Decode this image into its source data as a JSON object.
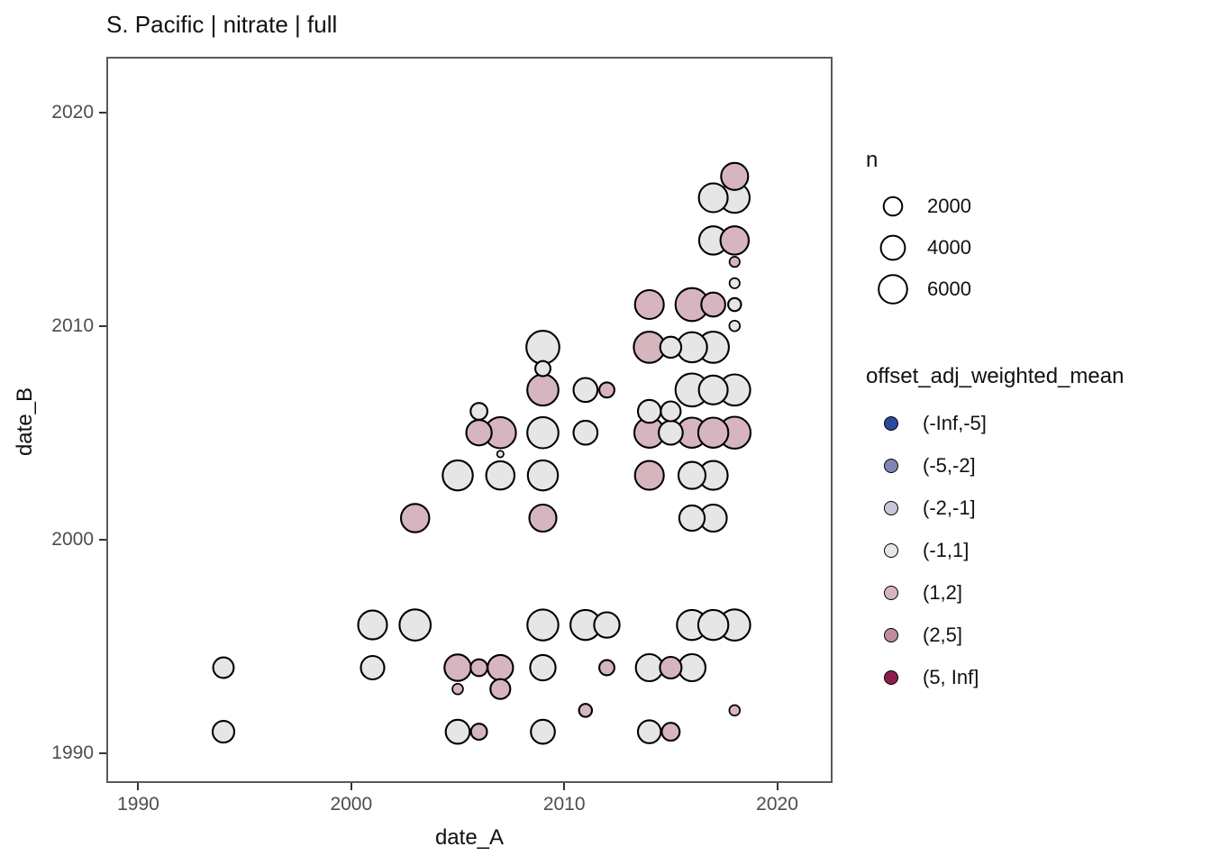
{
  "title": "S. Pacific | nitrate | full",
  "chart_data": {
    "type": "scatter",
    "subtype": "bubble",
    "title": "S. Pacific | nitrate | full",
    "xlabel": "date_A",
    "ylabel": "date_B",
    "x_ticks": [
      1990,
      2000,
      2010,
      2020
    ],
    "y_ticks": [
      1990,
      2000,
      2010,
      2020
    ],
    "xlim": [
      1988.5,
      2022.6
    ],
    "ylim": [
      1988.6,
      2022.6
    ],
    "grid": false,
    "panel_border_color": "#595959",
    "point_stroke_color": "#000000",
    "size_legend": {
      "title": "n",
      "values": [
        2000,
        4000,
        6000
      ]
    },
    "color_legend": {
      "title": "offset_adj_weighted_mean",
      "position": "right",
      "categories": [
        {
          "label": "(-Inf,-5]",
          "color": "#2a4b9b"
        },
        {
          "label": "(-5,-2]",
          "color": "#8184b9"
        },
        {
          "label": "(-2,-1]",
          "color": "#c6c6dc"
        },
        {
          "label": "(-1,1]",
          "color": "#e6e6e6"
        },
        {
          "label": "(1,2]",
          "color": "#d6b5bf"
        },
        {
          "label": "(2,5]",
          "color": "#bf8c9c"
        },
        {
          "label": "(5, Inf]",
          "color": "#8e1d4f"
        }
      ]
    },
    "points": [
      {
        "date_A": 1994,
        "date_B": 1994,
        "n": 2600,
        "bin": "(-1,1]"
      },
      {
        "date_A": 1994,
        "date_B": 1991,
        "n": 3000,
        "bin": "(-1,1]"
      },
      {
        "date_A": 2001,
        "date_B": 1996,
        "n": 6200,
        "bin": "(-1,1]"
      },
      {
        "date_A": 2001,
        "date_B": 1994,
        "n": 3700,
        "bin": "(-1,1]"
      },
      {
        "date_A": 2003,
        "date_B": 1996,
        "n": 7500,
        "bin": "(-1,1]"
      },
      {
        "date_A": 2003,
        "date_B": 2001,
        "n": 5900,
        "bin": "(1,2]"
      },
      {
        "date_A": 2005,
        "date_B": 2003,
        "n": 6900,
        "bin": "(-1,1]"
      },
      {
        "date_A": 2005,
        "date_B": 1994,
        "n": 5000,
        "bin": "(1,2]"
      },
      {
        "date_A": 2005,
        "date_B": 1993,
        "n": 350,
        "bin": "(1,2]"
      },
      {
        "date_A": 2005,
        "date_B": 1991,
        "n": 3900,
        "bin": "(-1,1]"
      },
      {
        "date_A": 2006,
        "date_B": 2006,
        "n": 1500,
        "bin": "(-1,1]"
      },
      {
        "date_A": 2006,
        "date_B": 2005,
        "n": 4500,
        "bin": "(1,2]"
      },
      {
        "date_A": 2006,
        "date_B": 1994,
        "n": 1500,
        "bin": "(1,2]"
      },
      {
        "date_A": 2006,
        "date_B": 1991,
        "n": 1300,
        "bin": "(1,2]"
      },
      {
        "date_A": 2007,
        "date_B": 2005,
        "n": 7500,
        "bin": "(1,2]"
      },
      {
        "date_A": 2007,
        "date_B": 2004,
        "n": 30,
        "bin": "(-1,1]"
      },
      {
        "date_A": 2007,
        "date_B": 2003,
        "n": 5900,
        "bin": "(-1,1]"
      },
      {
        "date_A": 2007,
        "date_B": 1994,
        "n": 4500,
        "bin": "(1,2]"
      },
      {
        "date_A": 2007,
        "date_B": 1993,
        "n": 2400,
        "bin": "(1,2]"
      },
      {
        "date_A": 2009,
        "date_B": 2009,
        "n": 8500,
        "bin": "(-1,1]"
      },
      {
        "date_A": 2009,
        "date_B": 2008,
        "n": 1100,
        "bin": "(-1,1]"
      },
      {
        "date_A": 2009,
        "date_B": 2007,
        "n": 7500,
        "bin": "(1,2]"
      },
      {
        "date_A": 2009,
        "date_B": 2005,
        "n": 7500,
        "bin": "(-1,1]"
      },
      {
        "date_A": 2009,
        "date_B": 2003,
        "n": 6900,
        "bin": "(-1,1]"
      },
      {
        "date_A": 2009,
        "date_B": 2001,
        "n": 5300,
        "bin": "(1,2]"
      },
      {
        "date_A": 2009,
        "date_B": 1996,
        "n": 7400,
        "bin": "(-1,1]"
      },
      {
        "date_A": 2009,
        "date_B": 1994,
        "n": 4500,
        "bin": "(-1,1]"
      },
      {
        "date_A": 2009,
        "date_B": 1991,
        "n": 3900,
        "bin": "(-1,1]"
      },
      {
        "date_A": 2011,
        "date_B": 2007,
        "n": 3900,
        "bin": "(-1,1]"
      },
      {
        "date_A": 2011,
        "date_B": 2005,
        "n": 3900,
        "bin": "(-1,1]"
      },
      {
        "date_A": 2011,
        "date_B": 1996,
        "n": 6900,
        "bin": "(-1,1]"
      },
      {
        "date_A": 2011,
        "date_B": 1992,
        "n": 700,
        "bin": "(1,2]"
      },
      {
        "date_A": 2012,
        "date_B": 2007,
        "n": 1100,
        "bin": "(1,2]"
      },
      {
        "date_A": 2012,
        "date_B": 1996,
        "n": 4500,
        "bin": "(-1,1]"
      },
      {
        "date_A": 2012,
        "date_B": 1994,
        "n": 1100,
        "bin": "(1,2]"
      },
      {
        "date_A": 2014,
        "date_B": 2011,
        "n": 6200,
        "bin": "(1,2]"
      },
      {
        "date_A": 2014,
        "date_B": 2009,
        "n": 7500,
        "bin": "(1,2]"
      },
      {
        "date_A": 2014,
        "date_B": 2006,
        "n": 3500,
        "bin": "(-1,1]"
      },
      {
        "date_A": 2014,
        "date_B": 2005,
        "n": 6900,
        "bin": "(1,2]"
      },
      {
        "date_A": 2014,
        "date_B": 2003,
        "n": 6200,
        "bin": "(1,2]"
      },
      {
        "date_A": 2014,
        "date_B": 1994,
        "n": 5300,
        "bin": "(-1,1]"
      },
      {
        "date_A": 2014,
        "date_B": 1991,
        "n": 3500,
        "bin": "(-1,1]"
      },
      {
        "date_A": 2015,
        "date_B": 2009,
        "n": 2800,
        "bin": "(-1,1]"
      },
      {
        "date_A": 2015,
        "date_B": 2006,
        "n": 2400,
        "bin": "(-1,1]"
      },
      {
        "date_A": 2015,
        "date_B": 2005,
        "n": 3900,
        "bin": "(-1,1]"
      },
      {
        "date_A": 2015,
        "date_B": 1994,
        "n": 3000,
        "bin": "(1,2]"
      },
      {
        "date_A": 2015,
        "date_B": 1991,
        "n": 1800,
        "bin": "(1,2]"
      },
      {
        "date_A": 2016,
        "date_B": 2011,
        "n": 8500,
        "bin": "(1,2]"
      },
      {
        "date_A": 2016,
        "date_B": 2009,
        "n": 6900,
        "bin": "(-1,1]"
      },
      {
        "date_A": 2016,
        "date_B": 2007,
        "n": 8500,
        "bin": "(-1,1]"
      },
      {
        "date_A": 2016,
        "date_B": 2005,
        "n": 6900,
        "bin": "(1,2]"
      },
      {
        "date_A": 2016,
        "date_B": 2003,
        "n": 5300,
        "bin": "(-1,1]"
      },
      {
        "date_A": 2016,
        "date_B": 2001,
        "n": 4500,
        "bin": "(-1,1]"
      },
      {
        "date_A": 2016,
        "date_B": 1996,
        "n": 6900,
        "bin": "(-1,1]"
      },
      {
        "date_A": 2016,
        "date_B": 1994,
        "n": 5300,
        "bin": "(-1,1]"
      },
      {
        "date_A": 2017,
        "date_B": 2016,
        "n": 6200,
        "bin": "(-1,1]"
      },
      {
        "date_A": 2017,
        "date_B": 2014,
        "n": 5900,
        "bin": "(-1,1]"
      },
      {
        "date_A": 2017,
        "date_B": 2011,
        "n": 3900,
        "bin": "(1,2]"
      },
      {
        "date_A": 2017,
        "date_B": 2009,
        "n": 7500,
        "bin": "(-1,1]"
      },
      {
        "date_A": 2017,
        "date_B": 2007,
        "n": 6200,
        "bin": "(-1,1]"
      },
      {
        "date_A": 2017,
        "date_B": 2005,
        "n": 6900,
        "bin": "(1,2]"
      },
      {
        "date_A": 2017,
        "date_B": 2003,
        "n": 6200,
        "bin": "(-1,1]"
      },
      {
        "date_A": 2017,
        "date_B": 2001,
        "n": 5300,
        "bin": "(-1,1]"
      },
      {
        "date_A": 2017,
        "date_B": 1996,
        "n": 6900,
        "bin": "(-1,1]"
      },
      {
        "date_A": 2018,
        "date_B": 2017,
        "n": 5300,
        "bin": "(1,2]"
      },
      {
        "date_A": 2018,
        "date_B": 2016,
        "n": 6900,
        "bin": "(-1,1]"
      },
      {
        "date_A": 2018,
        "date_B": 2014,
        "n": 5900,
        "bin": "(1,2]"
      },
      {
        "date_A": 2018,
        "date_B": 2013,
        "n": 300,
        "bin": "(1,2]"
      },
      {
        "date_A": 2018,
        "date_B": 2012,
        "n": 300,
        "bin": "(-1,1]"
      },
      {
        "date_A": 2018,
        "date_B": 2011,
        "n": 700,
        "bin": "(-1,1]"
      },
      {
        "date_A": 2018,
        "date_B": 2010,
        "n": 350,
        "bin": "(-1,1]"
      },
      {
        "date_A": 2018,
        "date_B": 2007,
        "n": 7500,
        "bin": "(-1,1]"
      },
      {
        "date_A": 2018,
        "date_B": 2005,
        "n": 7900,
        "bin": "(1,2]"
      },
      {
        "date_A": 2018,
        "date_B": 1996,
        "n": 7500,
        "bin": "(-1,1]"
      },
      {
        "date_A": 2018,
        "date_B": 1992,
        "n": 350,
        "bin": "(1,2]"
      }
    ]
  }
}
